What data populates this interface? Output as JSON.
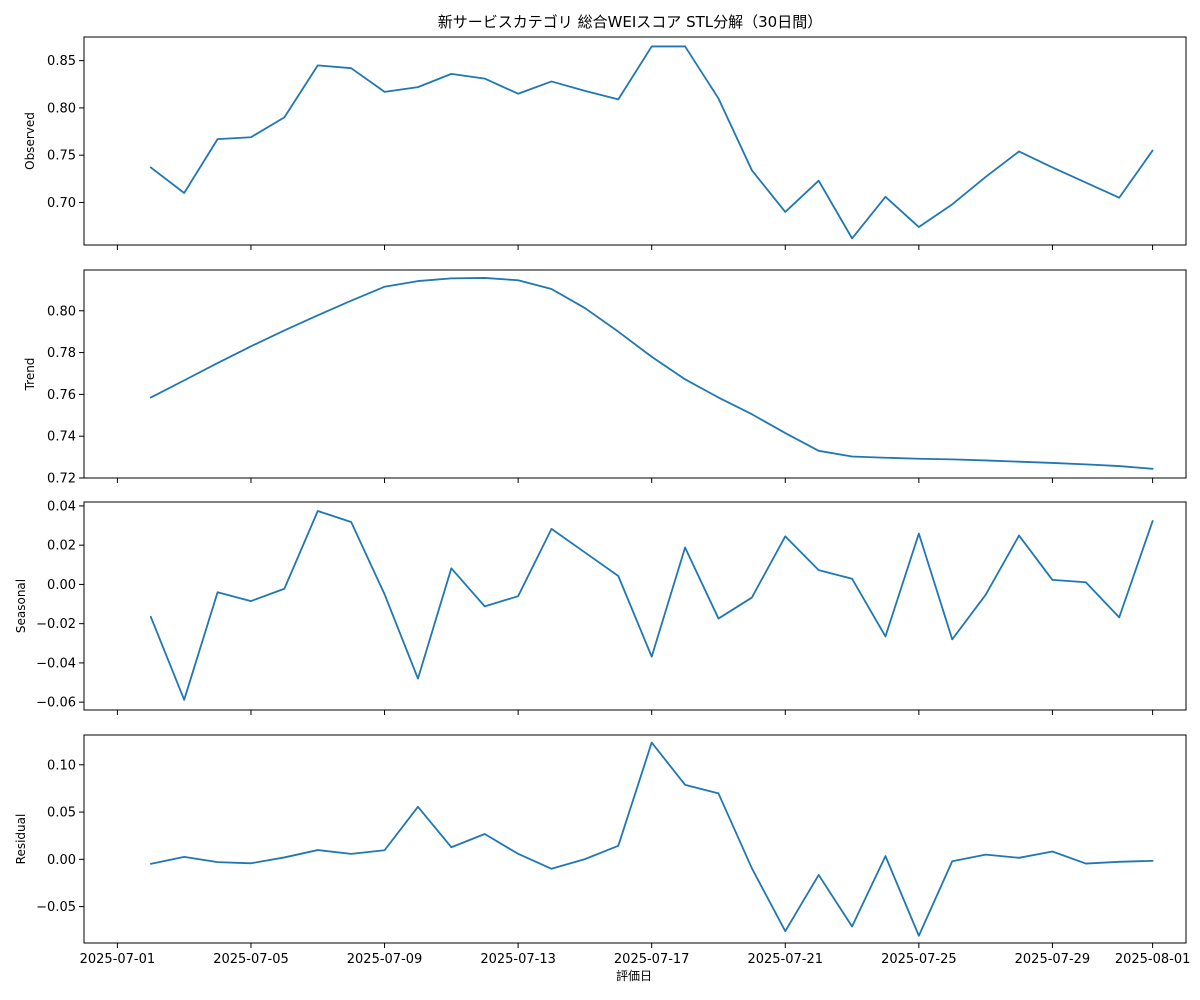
{
  "chart_data": {
    "type": "line",
    "title": "新サービスカテゴリ 総合WEIスコア STL分解（30日間）",
    "xlabel": "評価日",
    "line_color": "#1f77b4",
    "x": [
      "2025-07-02",
      "2025-07-03",
      "2025-07-04",
      "2025-07-05",
      "2025-07-06",
      "2025-07-07",
      "2025-07-08",
      "2025-07-09",
      "2025-07-10",
      "2025-07-11",
      "2025-07-12",
      "2025-07-13",
      "2025-07-14",
      "2025-07-15",
      "2025-07-16",
      "2025-07-17",
      "2025-07-18",
      "2025-07-19",
      "2025-07-20",
      "2025-07-21",
      "2025-07-22",
      "2025-07-23",
      "2025-07-24",
      "2025-07-25",
      "2025-07-26",
      "2025-07-27",
      "2025-07-28",
      "2025-07-29",
      "2025-07-30",
      "2025-07-31",
      "2025-08-01"
    ],
    "x_ticks": [
      "2025-07-01",
      "2025-07-05",
      "2025-07-09",
      "2025-07-13",
      "2025-07-17",
      "2025-07-21",
      "2025-07-25",
      "2025-07-29",
      "2025-08-01"
    ],
    "xlim": [
      "2025-06-30",
      "2025-08-02"
    ],
    "panels": [
      {
        "ylabel": "Observed",
        "ylim": [
          0.655,
          0.875
        ],
        "yticks": [
          0.7,
          0.75,
          0.8,
          0.85
        ],
        "tick_labels": [
          "0.70",
          "0.75",
          "0.80",
          "0.85"
        ],
        "values": [
          0.737,
          0.71,
          0.767,
          0.769,
          0.79,
          0.845,
          0.842,
          0.817,
          0.822,
          0.836,
          0.831,
          0.815,
          0.828,
          0.818,
          0.809,
          0.865,
          0.865,
          0.81,
          0.734,
          0.69,
          0.723,
          0.662,
          0.706,
          0.674,
          0.698,
          0.727,
          0.754,
          0.737,
          0.721,
          0.705,
          0.755
        ]
      },
      {
        "ylabel": "Trend",
        "ylim": [
          0.72,
          0.8195
        ],
        "yticks": [
          0.72,
          0.74,
          0.76,
          0.78,
          0.8
        ],
        "tick_labels": [
          "0.72",
          "0.74",
          "0.76",
          "0.78",
          "0.80"
        ],
        "values": [
          0.7585,
          0.7667,
          0.775,
          0.783,
          0.7906,
          0.7978,
          0.8048,
          0.8115,
          0.8142,
          0.8155,
          0.8157,
          0.8146,
          0.8104,
          0.8013,
          0.79,
          0.778,
          0.7672,
          0.7585,
          0.7505,
          0.7415,
          0.733,
          0.7303,
          0.7297,
          0.7292,
          0.7289,
          0.7284,
          0.7278,
          0.7272,
          0.7265,
          0.7257,
          0.7244
        ]
      },
      {
        "ylabel": "Seasonal",
        "ylim": [
          -0.064,
          0.042
        ],
        "yticks": [
          -0.06,
          -0.04,
          -0.02,
          0.0,
          0.02,
          0.04
        ],
        "tick_labels": [
          "−0.06",
          "−0.04",
          "−0.02",
          "0.00",
          "0.02",
          "0.04"
        ],
        "values": [
          -0.0165,
          -0.0588,
          -0.004,
          -0.0085,
          -0.0022,
          0.0374,
          0.0318,
          -0.005,
          -0.048,
          0.0082,
          -0.0112,
          -0.006,
          0.0283,
          0.0163,
          0.0043,
          -0.0368,
          0.0188,
          -0.0174,
          -0.0067,
          0.0245,
          0.0073,
          0.0029,
          -0.0265,
          0.0259,
          -0.028,
          -0.0053,
          0.0249,
          0.0023,
          0.0011,
          -0.0168,
          0.0323
        ]
      },
      {
        "ylabel": "Residual",
        "ylim": [
          -0.0885,
          0.1315
        ],
        "yticks": [
          -0.05,
          0.0,
          0.05,
          0.1
        ],
        "tick_labels": [
          "−0.05",
          "0.00",
          "0.05",
          "0.10"
        ],
        "values": [
          -0.0048,
          0.0026,
          -0.003,
          -0.0042,
          0.002,
          0.0098,
          0.0058,
          0.0096,
          0.0555,
          0.0128,
          0.0268,
          0.0058,
          -0.01,
          0.0002,
          0.0143,
          0.1235,
          0.0788,
          0.0697,
          -0.0095,
          -0.076,
          -0.0165,
          -0.071,
          0.0034,
          -0.0808,
          -0.002,
          0.005,
          0.0016,
          0.0083,
          -0.0045,
          -0.0026,
          -0.0016
        ]
      }
    ]
  }
}
